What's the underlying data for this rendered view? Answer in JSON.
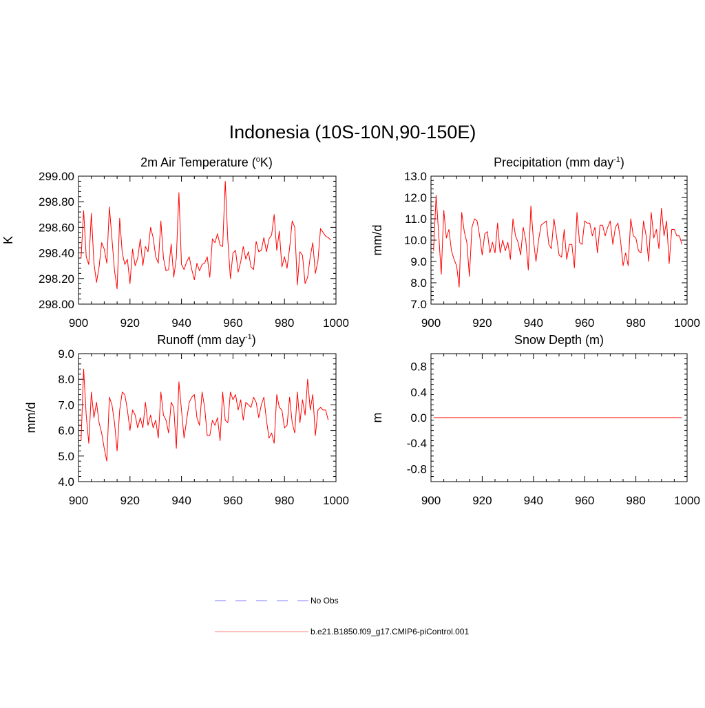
{
  "title": "Indonesia (10S-10N,90-150E)",
  "colors": {
    "model": "#ff0000",
    "obs": "#9999ff",
    "axis": "#000000"
  },
  "legend": {
    "entries": [
      {
        "label": "No Obs",
        "style": "dashed",
        "color": "#9999ff"
      },
      {
        "label": "b.e21.B1850.f09_g17.CMIP6-piControl.001",
        "style": "solid",
        "color": "#ff9999"
      }
    ]
  },
  "chart_data": [
    {
      "id": "temp",
      "type": "line",
      "title_pre": "2m Air Temperature (",
      "title_sup": "o",
      "title_post": "K)",
      "ylabel": "K",
      "xlim": [
        900,
        1000
      ],
      "ylim": [
        298.0,
        299.0
      ],
      "xticks": [
        "900",
        "920",
        "940",
        "960",
        "980",
        "1000"
      ],
      "yticks": [
        "298.00",
        "298.20",
        "298.40",
        "298.60",
        "298.80",
        "299.00"
      ],
      "x_start": 901,
      "values": [
        298.36,
        298.73,
        298.37,
        298.31,
        298.71,
        298.32,
        298.17,
        298.29,
        298.48,
        298.43,
        298.32,
        298.76,
        298.51,
        298.26,
        298.12,
        298.67,
        298.4,
        298.31,
        298.35,
        298.16,
        298.43,
        298.3,
        298.36,
        298.51,
        298.3,
        298.45,
        298.41,
        298.6,
        298.52,
        298.37,
        298.32,
        298.65,
        298.36,
        298.26,
        298.27,
        298.47,
        298.21,
        298.36,
        298.87,
        298.31,
        298.27,
        298.33,
        298.37,
        298.27,
        298.19,
        298.32,
        298.26,
        298.31,
        298.32,
        298.37,
        298.21,
        298.51,
        298.48,
        298.55,
        298.46,
        298.45,
        298.96,
        298.5,
        298.2,
        298.4,
        298.42,
        298.25,
        298.33,
        298.45,
        298.35,
        298.41,
        298.29,
        298.27,
        298.49,
        298.41,
        298.42,
        298.52,
        298.41,
        298.51,
        298.54,
        298.7,
        298.42,
        298.57,
        298.29,
        298.37,
        298.28,
        298.44,
        298.65,
        298.6,
        298.15,
        298.41,
        298.38,
        298.16,
        298.21,
        298.37,
        298.48,
        298.24,
        298.34,
        298.59,
        298.56,
        298.53,
        298.52,
        298.5
      ]
    },
    {
      "id": "precip",
      "type": "line",
      "title_pre": "Precipitation (mm day",
      "title_sup": "-1",
      "title_post": ")",
      "ylabel": "mm/d",
      "xlim": [
        900,
        1000
      ],
      "ylim": [
        7.0,
        13.0
      ],
      "xticks": [
        "900",
        "920",
        "940",
        "960",
        "980",
        "1000"
      ],
      "yticks": [
        "7.0",
        "8.0",
        "9.0",
        "10.0",
        "11.0",
        "12.0",
        "13.0"
      ],
      "x_start": 901,
      "values": [
        9.5,
        12.1,
        10.3,
        8.4,
        11.4,
        10.1,
        10.5,
        9.5,
        9.1,
        8.8,
        7.8,
        11.3,
        10.4,
        9.9,
        8.3,
        10.6,
        11.0,
        10.9,
        10.2,
        9.3,
        10.3,
        10.4,
        9.4,
        9.9,
        9.4,
        10.8,
        9.4,
        10.0,
        9.5,
        9.9,
        9.1,
        11.0,
        10.2,
        9.9,
        9.3,
        10.6,
        10.0,
        8.6,
        11.6,
        10.0,
        9.0,
        10.0,
        10.7,
        10.8,
        10.9,
        9.8,
        9.6,
        11.0,
        10.2,
        9.3,
        9.2,
        10.5,
        9.1,
        9.8,
        9.8,
        8.7,
        11.3,
        9.9,
        9.8,
        10.9,
        10.8,
        10.8,
        10.2,
        10.6,
        9.4,
        10.7,
        10.7,
        10.2,
        10.6,
        10.9,
        9.8,
        10.6,
        10.8,
        10.0,
        8.8,
        9.4,
        8.8,
        11.0,
        10.2,
        10.1,
        9.5,
        9.4,
        10.9,
        10.2,
        9.0,
        11.3,
        10.1,
        10.5,
        9.6,
        11.5,
        10.2,
        10.9,
        8.9,
        10.5,
        10.5,
        10.2,
        10.2,
        9.8
      ]
    },
    {
      "id": "runoff",
      "type": "line",
      "title_pre": "Runoff (mm day",
      "title_sup": "-1",
      "title_post": ")",
      "ylabel": "mm/d",
      "xlim": [
        900,
        1000
      ],
      "ylim": [
        4.0,
        9.0
      ],
      "xticks": [
        "900",
        "920",
        "940",
        "960",
        "980",
        "1000"
      ],
      "yticks": [
        "4.0",
        "5.0",
        "6.0",
        "7.0",
        "8.0",
        "9.0"
      ],
      "x_start": 901,
      "values": [
        5.6,
        8.4,
        6.6,
        5.5,
        7.5,
        6.5,
        7.1,
        6.3,
        5.9,
        5.3,
        4.8,
        7.3,
        7.0,
        6.3,
        5.2,
        6.8,
        7.5,
        7.4,
        6.8,
        6.0,
        6.8,
        6.6,
        6.1,
        6.5,
        6.1,
        7.1,
        6.2,
        6.6,
        6.1,
        6.4,
        5.7,
        7.5,
        6.6,
        6.4,
        5.9,
        7.1,
        6.9,
        5.3,
        7.9,
        6.8,
        5.7,
        6.4,
        7.1,
        7.3,
        7.4,
        6.5,
        6.2,
        7.5,
        6.9,
        5.8,
        5.8,
        6.4,
        6.2,
        6.5,
        5.6,
        7.5,
        6.4,
        6.3,
        7.5,
        7.2,
        7.4,
        6.8,
        7.2,
        6.4,
        7.1,
        7.0,
        6.9,
        7.3,
        7.1,
        6.5,
        7.0,
        7.3,
        6.4,
        5.7,
        5.9,
        5.5,
        7.4,
        6.9,
        6.8,
        6.1,
        6.2,
        7.3,
        6.3,
        5.9,
        7.5,
        6.3,
        7.2,
        6.6,
        8.0,
        6.8,
        7.4,
        5.8,
        6.8,
        6.9,
        6.8,
        6.8,
        6.4
      ]
    },
    {
      "id": "snow",
      "type": "line",
      "title_pre": "Snow Depth (m)",
      "title_sup": "",
      "title_post": "",
      "ylabel": "m",
      "xlim": [
        900,
        1000
      ],
      "ylim": [
        -1.0,
        1.0
      ],
      "xticks": [
        "900",
        "920",
        "940",
        "960",
        "980",
        "1000"
      ],
      "yticks": [
        "-0.8",
        "-0.4",
        "0.0",
        "0.4",
        "0.8"
      ],
      "ytick_values": [
        -0.8,
        -0.4,
        0.0,
        0.4,
        0.8
      ],
      "x": [
        901,
        998
      ],
      "values": [
        0.0,
        0.0
      ]
    }
  ]
}
